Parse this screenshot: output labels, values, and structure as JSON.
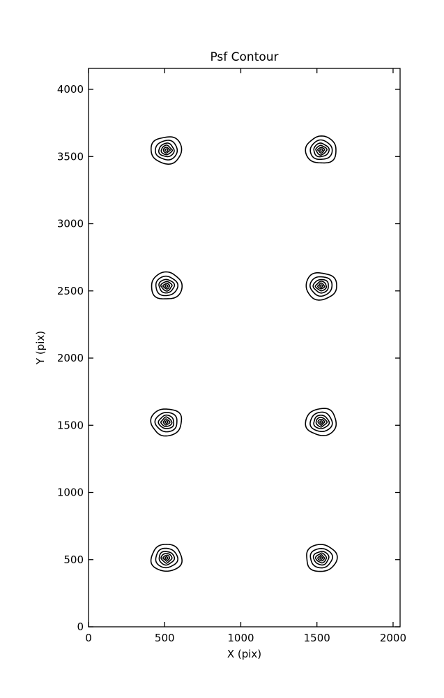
{
  "chart_data": {
    "type": "contour",
    "title": "Psf Contour",
    "xlabel": "X (pix)",
    "ylabel": "Y (pix)",
    "xlim": [
      0,
      2046
    ],
    "ylim": [
      0,
      4156
    ],
    "xticks": [
      0,
      500,
      1000,
      1500,
      2000
    ],
    "yticks": [
      0,
      500,
      1000,
      1500,
      2000,
      2500,
      3000,
      3500,
      4000
    ],
    "grid": false,
    "legend": null,
    "line_color": "#000000",
    "background": "#ffffff",
    "tick_direction": "in",
    "ticks_on_all_sides": true,
    "psf_grid": {
      "x_centers": [
        512,
        1528
      ],
      "y_centers": [
        512,
        1524,
        2536,
        3548
      ],
      "n_levels": 6,
      "contour_radii_pix": [
        100,
        72,
        50,
        36,
        22,
        9
      ]
    },
    "centers": [
      {
        "x": 512,
        "y": 512
      },
      {
        "x": 1528,
        "y": 512
      },
      {
        "x": 512,
        "y": 1524
      },
      {
        "x": 1528,
        "y": 1524
      },
      {
        "x": 512,
        "y": 2536
      },
      {
        "x": 1528,
        "y": 2536
      },
      {
        "x": 512,
        "y": 3548
      },
      {
        "x": 1528,
        "y": 3548
      }
    ]
  }
}
